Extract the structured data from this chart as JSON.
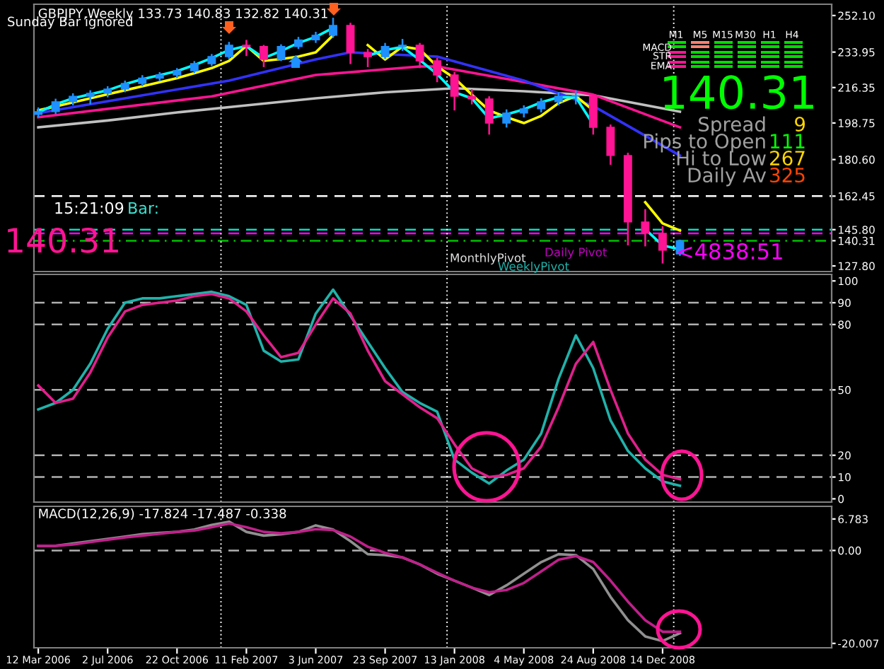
{
  "chart_data": [
    {
      "type": "candlestick",
      "title": "GBPJPY,Weekly 133.73 140.83 132.82 140.31",
      "x": [
        "2006-03-12",
        "2006-04-09",
        "2006-05-07",
        "2006-06-04",
        "2006-07-02",
        "2006-07-30",
        "2006-08-27",
        "2006-09-24",
        "2006-10-22",
        "2006-11-19",
        "2006-12-17",
        "2007-01-14",
        "2007-02-11",
        "2007-03-11",
        "2007-04-08",
        "2007-05-06",
        "2007-06-03",
        "2007-07-01",
        "2007-07-29",
        "2007-08-26",
        "2007-09-23",
        "2007-10-21",
        "2007-11-18",
        "2007-12-16",
        "2008-01-13",
        "2008-02-10",
        "2008-03-09",
        "2008-04-06",
        "2008-05-04",
        "2008-06-01",
        "2008-06-29",
        "2008-07-27",
        "2008-08-24",
        "2008-09-21",
        "2008-10-19",
        "2008-11-16",
        "2008-12-14",
        "2009-01-11"
      ],
      "ohlc": [
        [
          203.0,
          206.5,
          201.5,
          204.4
        ],
        [
          204.4,
          210.8,
          203.2,
          209.3
        ],
        [
          209.3,
          213.5,
          207.5,
          212.0
        ],
        [
          212.0,
          215.0,
          208.0,
          213.5
        ],
        [
          213.5,
          217.0,
          211.5,
          215.6
        ],
        [
          215.6,
          219.8,
          214.0,
          218.4
        ],
        [
          218.4,
          222.5,
          217.0,
          221.0
        ],
        [
          221.0,
          224.0,
          219.5,
          222.6
        ],
        [
          222.6,
          226.0,
          221.0,
          224.7
        ],
        [
          224.7,
          229.5,
          223.5,
          228.2
        ],
        [
          228.2,
          233.0,
          227.0,
          231.7
        ],
        [
          231.7,
          239.0,
          230.5,
          237.4
        ],
        [
          237.4,
          240.0,
          232.0,
          236.7
        ],
        [
          236.7,
          237.5,
          226.5,
          230.3
        ],
        [
          230.3,
          237.8,
          229.5,
          236.7
        ],
        [
          236.7,
          241.5,
          235.5,
          240.0
        ],
        [
          240.0,
          244.0,
          238.5,
          242.3
        ],
        [
          242.3,
          251.0,
          241.0,
          247.2
        ],
        [
          247.2,
          248.5,
          228.0,
          233.8
        ],
        [
          233.8,
          235.5,
          226.5,
          231.7
        ],
        [
          231.7,
          238.5,
          230.5,
          236.7
        ],
        [
          236.7,
          240.5,
          234.5,
          237.4
        ],
        [
          237.4,
          238.5,
          226.0,
          229.6
        ],
        [
          229.6,
          231.0,
          219.0,
          222.6
        ],
        [
          222.6,
          224.0,
          205.0,
          212.0
        ],
        [
          212.0,
          215.5,
          208.0,
          210.7
        ],
        [
          210.7,
          212.0,
          193.0,
          198.7
        ],
        [
          198.7,
          205.5,
          196.5,
          203.7
        ],
        [
          203.7,
          207.5,
          201.5,
          205.8
        ],
        [
          205.8,
          211.0,
          204.0,
          209.3
        ],
        [
          209.3,
          214.0,
          207.5,
          212.1
        ],
        [
          212.1,
          215.0,
          208.0,
          212.1
        ],
        [
          212.1,
          213.0,
          193.0,
          196.6
        ],
        [
          196.6,
          198.0,
          178.0,
          182.6
        ],
        [
          182.6,
          184.0,
          138.0,
          149.6
        ],
        [
          149.6,
          156.0,
          137.5,
          144.0
        ],
        [
          144.0,
          147.5,
          129.0,
          135.6
        ],
        [
          133.73,
          140.83,
          132.82,
          140.31
        ]
      ],
      "series": [
        {
          "type": "line",
          "color": "#c0c0c0",
          "x": [
            "2006-03-12",
            "2006-07-02",
            "2006-10-22",
            "2007-02-11",
            "2007-06-03",
            "2007-09-23",
            "2008-01-13",
            "2008-05-04",
            "2008-08-24",
            "2009-01-11"
          ],
          "values": [
            196.6,
            200.0,
            204.0,
            207.5,
            211.0,
            214.0,
            216.0,
            214.5,
            212.5,
            204.4
          ]
        },
        {
          "type": "line",
          "color": "#ff1493",
          "x": [
            "2006-03-12",
            "2006-12-17",
            "2007-06-03",
            "2007-11-18",
            "2007-12-16",
            "2008-05-04",
            "2008-08-24",
            "2009-01-11"
          ],
          "values": [
            201.6,
            212.0,
            222.6,
            226.8,
            226.8,
            219.1,
            212.8,
            196.6
          ]
        },
        {
          "type": "line",
          "color": "#3232ff",
          "x": [
            "2006-03-12",
            "2007-01-14",
            "2007-06-03",
            "2007-07-29",
            "2007-12-16",
            "2008-05-04",
            "2008-08-24",
            "2009-01-11"
          ],
          "values": [
            203.7,
            219.8,
            230.3,
            233.8,
            231.7,
            219.8,
            207.2,
            182.6
          ]
        },
        {
          "type": "line",
          "color": "#ffff00",
          "values": [
            205.0,
            207.0,
            209.0,
            211.0,
            213.0,
            215.0,
            217.0,
            219.0,
            221.0,
            223.5,
            226.0,
            229.6,
            237.0,
            229.6,
            230.5,
            231.7,
            233.8,
            242.3,
            null,
            237.4,
            230.3,
            236.7,
            235.3,
            226.8,
            221.0,
            212.8,
            205.0,
            201.6,
            198.7,
            202.3,
            208.6,
            212.1,
            205.0,
            null,
            null,
            159.4,
            148.9,
            145.4
          ]
        },
        {
          "type": "line",
          "color": "#00ffff",
          "values": [
            204.0,
            208.0,
            211.0,
            213.0,
            215.0,
            218.0,
            220.5,
            222.5,
            224.5,
            227.5,
            231.0,
            235.0,
            237.0,
            231.0,
            234.5,
            238.5,
            241.5,
            246.0,
            null,
            232.0,
            235.0,
            236.5,
            230.0,
            223.0,
            214.0,
            211.0,
            201.0,
            203.0,
            205.5,
            209.0,
            211.5,
            211.5,
            198.0,
            null,
            null,
            146.0,
            138.0,
            136.0
          ]
        }
      ],
      "xlim": [
        "2006-03-05",
        "2009-09-13"
      ],
      "ylim": [
        125.0,
        257.7
      ],
      "yticks": [
        {
          "value": 127.8,
          "label": "127.80"
        },
        {
          "value": 140.31,
          "label": "140.31"
        },
        {
          "value": 145.8,
          "label": "145.80"
        },
        162.45,
        {
          "value": 180.6,
          "label": "180.60"
        },
        {
          "value": 198.75,
          "label": "198.75"
        },
        {
          "value": 216.35,
          "label": "216.35"
        },
        {
          "value": 233.95,
          "label": "233.95"
        },
        {
          "value": 252.1,
          "label": "252.10"
        }
      ],
      "tick_labels": "y",
      "ref_lines": [
        {
          "axis": "y",
          "value": 162.45,
          "color": "#ffffff",
          "line_style": "dashed"
        },
        {
          "axis": "y",
          "value": 145.8,
          "color": "#00e0c0",
          "line_style": "dashed"
        },
        {
          "axis": "y",
          "value": 144.0,
          "color": "#ff00ff",
          "line_style": "dashed"
        },
        {
          "axis": "y",
          "value": 140.31,
          "color": "#00c000",
          "line_style": "dashdot"
        },
        {
          "axis": "x",
          "value": "2007-01-01",
          "color": "#ffffff",
          "line_style": "dotted"
        },
        {
          "axis": "x",
          "value": "2008-01-01",
          "color": "#ffffff",
          "line_style": "dotted"
        },
        {
          "axis": "x",
          "value": "2009-01-01",
          "color": "#ffffff",
          "line_style": "dotted"
        }
      ],
      "annotations": [
        "Sunday Bar ignored",
        "15:21:09",
        "Bar:",
        "140.31",
        "MonthlyPivot",
        "WeeklyPivot",
        "Daily Pivot",
        "<4838:51",
        "M1",
        "M5",
        "M15",
        "M30",
        "H1",
        "H4",
        "MACD",
        "STR",
        "EMA",
        "140.31",
        "Spread",
        "9",
        "Pips to Open",
        "111",
        "Hi to Low",
        "267",
        "Daily Av",
        "325"
      ]
    },
    {
      "type": "line",
      "x": [
        "2006-03-12",
        "2006-04-09",
        "2006-05-07",
        "2006-06-04",
        "2006-07-02",
        "2006-07-30",
        "2006-08-27",
        "2006-09-24",
        "2006-10-22",
        "2006-11-19",
        "2006-12-17",
        "2007-01-14",
        "2007-02-11",
        "2007-03-11",
        "2007-04-08",
        "2007-05-06",
        "2007-06-03",
        "2007-07-01",
        "2007-07-29",
        "2007-08-26",
        "2007-09-23",
        "2007-10-21",
        "2007-11-18",
        "2007-12-16",
        "2008-01-13",
        "2008-02-10",
        "2008-03-09",
        "2008-04-06",
        "2008-05-04",
        "2008-06-01",
        "2008-06-29",
        "2008-07-27",
        "2008-08-24",
        "2008-09-21",
        "2008-10-19",
        "2008-11-16",
        "2008-12-14",
        "2009-01-11"
      ],
      "series": [
        {
          "color": "#20b2aa",
          "values": [
            41,
            44,
            50,
            62,
            78,
            90,
            92,
            92,
            93,
            94,
            95,
            93,
            89,
            68,
            63,
            64,
            85,
            96,
            84,
            72,
            60,
            49,
            44,
            40,
            18,
            12,
            7,
            13,
            18,
            30,
            55,
            75,
            60,
            36,
            22,
            14,
            8,
            6
          ]
        },
        {
          "color": "#e0208c",
          "values": [
            52,
            44,
            46,
            58,
            74,
            86,
            89,
            90,
            91,
            93,
            94,
            92,
            86,
            75,
            65,
            67,
            80,
            92,
            85,
            68,
            54,
            48,
            42,
            37,
            25,
            14,
            10,
            11,
            14,
            24,
            42,
            62,
            72,
            50,
            30,
            18,
            11,
            9
          ]
        }
      ],
      "xlim": [
        "2006-03-05",
        "2009-09-13"
      ],
      "ylim": [
        -1.5,
        103
      ],
      "yticks": [
        0,
        10,
        20,
        50,
        80,
        90,
        100
      ],
      "tick_labels": "y",
      "ref_lines": [
        {
          "axis": "y",
          "value": 10,
          "color": "#b0b0b0",
          "line_style": "dashed"
        },
        {
          "axis": "y",
          "value": 20,
          "color": "#b0b0b0",
          "line_style": "dashed"
        },
        {
          "axis": "y",
          "value": 50,
          "color": "#b0b0b0",
          "line_style": "dashed"
        },
        {
          "axis": "y",
          "value": 80,
          "color": "#b0b0b0",
          "line_style": "dashed"
        },
        {
          "axis": "y",
          "value": 90,
          "color": "#b0b0b0",
          "line_style": "dashed"
        },
        {
          "axis": "x",
          "value": "2007-01-01",
          "color": "#ffffff",
          "line_style": "dotted"
        },
        {
          "axis": "x",
          "value": "2008-01-01",
          "color": "#ffffff",
          "line_style": "dotted"
        },
        {
          "axis": "x",
          "value": "2009-01-01",
          "color": "#ffffff",
          "line_style": "dotted"
        }
      ]
    },
    {
      "type": "line",
      "title": "MACD(12,26,9) -17.824 -17.487 -0.338",
      "x": [
        "2006-03-12",
        "2006-04-09",
        "2006-05-07",
        "2006-06-04",
        "2006-07-02",
        "2006-07-30",
        "2006-08-27",
        "2006-09-24",
        "2006-10-22",
        "2006-11-19",
        "2006-12-17",
        "2007-01-14",
        "2007-02-11",
        "2007-03-11",
        "2007-04-08",
        "2007-05-06",
        "2007-06-03",
        "2007-07-01",
        "2007-07-29",
        "2007-08-26",
        "2007-09-23",
        "2007-10-21",
        "2007-11-18",
        "2007-12-16",
        "2008-01-13",
        "2008-02-10",
        "2008-03-09",
        "2008-04-06",
        "2008-05-04",
        "2008-06-01",
        "2008-06-29",
        "2008-07-27",
        "2008-08-24",
        "2008-09-21",
        "2008-10-19",
        "2008-11-16",
        "2008-12-14",
        "2009-01-11"
      ],
      "series": [
        {
          "color": "#909090",
          "values": [
            1,
            1,
            1.5,
            2,
            2.5,
            3,
            3.5,
            3.8,
            4,
            4.5,
            5.5,
            6.2,
            4,
            3.2,
            3.5,
            4,
            5.4,
            4.5,
            2,
            -0.8,
            -1,
            -1.5,
            -3,
            -5,
            -6.5,
            -8,
            -9.6,
            -7.5,
            -5,
            -2.5,
            -0.8,
            -1,
            -4,
            -10,
            -15,
            -18.5,
            -19.5,
            -17.8
          ]
        },
        {
          "color": "#c0208c",
          "values": [
            1,
            1,
            1.3,
            1.8,
            2.3,
            2.8,
            3.2,
            3.6,
            4,
            4.3,
            5,
            5.8,
            5,
            4,
            3.7,
            4,
            4.6,
            4.4,
            3,
            0.8,
            -0.5,
            -1.5,
            -3,
            -4.8,
            -6.5,
            -8,
            -9,
            -8.5,
            -7,
            -4.5,
            -2,
            -1.2,
            -2.5,
            -6.5,
            -11,
            -15,
            -17.5,
            -17.5
          ]
        }
      ],
      "xlim": [
        "2006-03-05",
        "2009-09-13"
      ],
      "ylim": [
        -20.95,
        9.5
      ],
      "xticks": [
        {
          "value": "2006-03-12",
          "label": "12 Mar 2006"
        },
        {
          "value": "2006-07-02",
          "label": "2 Jul 2006"
        },
        {
          "value": "2006-10-22",
          "label": "22 Oct 2006"
        },
        {
          "value": "2007-02-11",
          "label": "11 Feb 2007"
        },
        {
          "value": "2007-06-03",
          "label": "3 Jun 2007"
        },
        {
          "value": "2007-09-23",
          "label": "23 Sep 2007"
        },
        {
          "value": "2008-01-13",
          "label": "13 Jan 2008"
        },
        {
          "value": "2008-05-04",
          "label": "4 May 2008"
        },
        {
          "value": "2008-08-24",
          "label": "24 Aug 2008"
        },
        {
          "value": "2008-12-14",
          "label": "14 Dec 2008"
        }
      ],
      "yticks": [
        {
          "value": -20.007,
          "label": "-20.007"
        },
        {
          "value": 0,
          "label": "0.00"
        },
        6.783
      ],
      "ref_lines": [
        {
          "axis": "y",
          "value": 0,
          "color": "#b0b0b0",
          "line_style": "dashed"
        },
        {
          "axis": "x",
          "value": "2007-01-01",
          "color": "#ffffff",
          "line_style": "dotted"
        },
        {
          "axis": "x",
          "value": "2008-01-01",
          "color": "#ffffff",
          "line_style": "dotted"
        },
        {
          "axis": "x",
          "value": "2009-01-01",
          "color": "#ffffff",
          "line_style": "dotted"
        }
      ]
    }
  ]
}
